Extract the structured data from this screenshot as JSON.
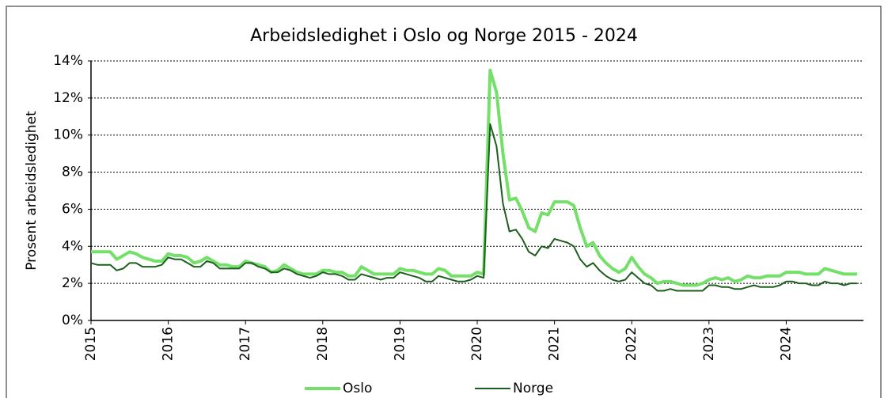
{
  "chart_data": {
    "type": "line",
    "title": "Arbeidsledighet i Oslo og Norge 2015 - 2024",
    "y_label": "Prosent arbeidsledighet",
    "categories": [
      "2015",
      null,
      null,
      null,
      null,
      null,
      null,
      null,
      null,
      null,
      null,
      null,
      "2016",
      null,
      null,
      null,
      null,
      null,
      null,
      null,
      null,
      null,
      null,
      null,
      "2017",
      null,
      null,
      null,
      null,
      null,
      null,
      null,
      null,
      null,
      null,
      null,
      "2018",
      null,
      null,
      null,
      null,
      null,
      null,
      null,
      null,
      null,
      null,
      null,
      "2019",
      null,
      null,
      null,
      null,
      null,
      null,
      null,
      null,
      null,
      null,
      null,
      "2020",
      null,
      null,
      null,
      null,
      null,
      null,
      null,
      null,
      null,
      null,
      null,
      "2021",
      null,
      null,
      null,
      null,
      null,
      null,
      null,
      null,
      null,
      null,
      null,
      "2022",
      null,
      null,
      null,
      null,
      null,
      null,
      null,
      null,
      null,
      null,
      null,
      "2023",
      null,
      null,
      null,
      null,
      null,
      null,
      null,
      null,
      null,
      null,
      null,
      "2024",
      null,
      null,
      null,
      null,
      null,
      null,
      null,
      null,
      null,
      null,
      null
    ],
    "series": [
      {
        "name": "Oslo",
        "color": "#74e06a",
        "width": 4,
        "values": [
          3.7,
          3.7,
          3.7,
          3.7,
          3.3,
          3.5,
          3.7,
          3.6,
          3.4,
          3.3,
          3.2,
          3.2,
          3.6,
          3.5,
          3.5,
          3.4,
          3.1,
          3.2,
          3.4,
          3.2,
          3.0,
          3.0,
          2.9,
          2.9,
          3.2,
          3.1,
          3.0,
          2.9,
          2.6,
          2.7,
          3.0,
          2.8,
          2.6,
          2.5,
          2.5,
          2.5,
          2.7,
          2.7,
          2.6,
          2.6,
          2.4,
          2.4,
          2.9,
          2.7,
          2.5,
          2.5,
          2.5,
          2.5,
          2.8,
          2.7,
          2.7,
          2.6,
          2.5,
          2.5,
          2.8,
          2.7,
          2.4,
          2.4,
          2.4,
          2.4,
          2.6,
          2.5,
          13.5,
          12.3,
          9.0,
          6.5,
          6.6,
          5.9,
          5.0,
          4.8,
          5.8,
          5.7,
          6.4,
          6.4,
          6.4,
          6.2,
          5.0,
          4.0,
          4.2,
          3.5,
          3.1,
          2.8,
          2.6,
          2.8,
          3.4,
          2.9,
          2.5,
          2.3,
          2.0,
          2.1,
          2.1,
          2.0,
          1.9,
          1.9,
          1.9,
          2.0,
          2.2,
          2.3,
          2.2,
          2.3,
          2.1,
          2.2,
          2.4,
          2.3,
          2.3,
          2.4,
          2.4,
          2.4,
          2.6,
          2.6,
          2.6,
          2.5,
          2.5,
          2.5,
          2.8,
          2.7,
          2.6,
          2.5,
          2.5,
          2.5
        ]
      },
      {
        "name": "Norge",
        "color": "#1e5e1e",
        "width": 2,
        "values": [
          3.1,
          3.0,
          3.0,
          3.0,
          2.7,
          2.8,
          3.1,
          3.1,
          2.9,
          2.9,
          2.9,
          3.0,
          3.4,
          3.3,
          3.3,
          3.1,
          2.9,
          2.9,
          3.2,
          3.1,
          2.8,
          2.8,
          2.8,
          2.8,
          3.1,
          3.1,
          2.9,
          2.8,
          2.6,
          2.6,
          2.8,
          2.7,
          2.5,
          2.4,
          2.3,
          2.4,
          2.6,
          2.5,
          2.5,
          2.4,
          2.2,
          2.2,
          2.5,
          2.4,
          2.3,
          2.2,
          2.3,
          2.3,
          2.6,
          2.5,
          2.4,
          2.3,
          2.1,
          2.1,
          2.4,
          2.3,
          2.2,
          2.1,
          2.1,
          2.2,
          2.4,
          2.3,
          10.6,
          9.4,
          6.3,
          4.8,
          4.9,
          4.4,
          3.7,
          3.5,
          4.0,
          3.9,
          4.4,
          4.3,
          4.2,
          4.0,
          3.3,
          2.9,
          3.1,
          2.7,
          2.4,
          2.2,
          2.1,
          2.2,
          2.6,
          2.3,
          2.0,
          1.9,
          1.6,
          1.6,
          1.7,
          1.6,
          1.6,
          1.6,
          1.6,
          1.6,
          1.9,
          1.9,
          1.8,
          1.8,
          1.7,
          1.7,
          1.8,
          1.9,
          1.8,
          1.8,
          1.8,
          1.9,
          2.1,
          2.1,
          2.0,
          2.0,
          1.9,
          1.9,
          2.1,
          2.0,
          2.0,
          1.9,
          2.0,
          2.0
        ]
      }
    ],
    "ylim": [
      0,
      14
    ],
    "yticks": [
      {
        "value": 0,
        "label": "0%"
      },
      {
        "value": 2,
        "label": "2%"
      },
      {
        "value": 4,
        "label": "4%"
      },
      {
        "value": 6,
        "label": "6%"
      },
      {
        "value": 8,
        "label": "8%"
      },
      {
        "value": 10,
        "label": "10%"
      },
      {
        "value": 12,
        "label": "12%"
      },
      {
        "value": 14,
        "label": "14%"
      }
    ],
    "grid": true,
    "legend": "bottom"
  }
}
